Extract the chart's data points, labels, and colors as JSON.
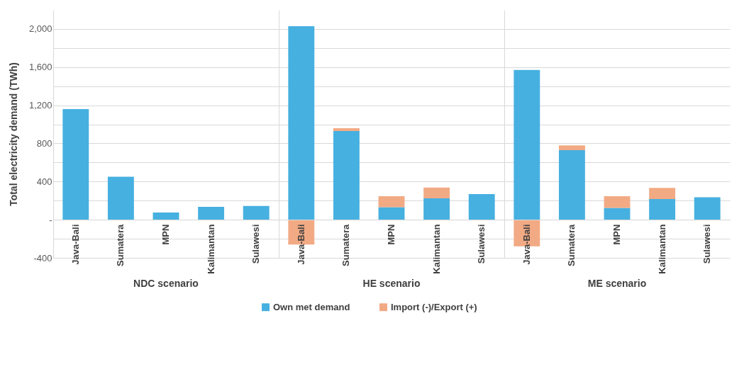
{
  "chart_data": [
    {
      "type": "bar",
      "stacked": true,
      "xlabel": "NDC scenario",
      "ylabel": "Total electricity demand (TWh)",
      "categories": [
        "Java-Bali",
        "Sumatera",
        "MPN",
        "Kalimantan",
        "Sulawesi"
      ],
      "series": [
        {
          "name": "Own met demand",
          "color": "#46b0e0",
          "values": [
            1160,
            450,
            75,
            135,
            145
          ]
        }
      ],
      "ylim": [
        -400,
        2200
      ],
      "yticks": [
        -400,
        {
          "value": -200,
          "label": null
        },
        {
          "value": 0,
          "label": "-"
        },
        {
          "value": 200,
          "label": null
        },
        400,
        {
          "value": 600,
          "label": null
        },
        800,
        {
          "value": 1000,
          "label": null
        },
        {
          "value": 1200,
          "label": "1,200"
        },
        {
          "value": 1400,
          "label": null
        },
        {
          "value": 1600,
          "label": "1,600"
        },
        {
          "value": 1800,
          "label": null
        },
        {
          "value": 2000,
          "label": "2,000"
        }
      ],
      "grid": "y",
      "legend": "bottom"
    },
    {
      "type": "bar",
      "stacked": true,
      "xlabel": "HE scenario",
      "categories": [
        "Java-Bali",
        "Sumatera",
        "MPN",
        "Kalimantan",
        "Sulawesi"
      ],
      "series": [
        {
          "name": "Own met demand",
          "color": "#46b0e0",
          "values": [
            2030,
            930,
            132,
            224,
            269
          ]
        },
        {
          "name": "Import (-)/Export (+)",
          "color": "#f2aa84",
          "values": [
            -260,
            30,
            115,
            113,
            0
          ]
        }
      ],
      "legend": "bottom",
      "ylim": [
        -400,
        2200
      ],
      "yticks": [
        {
          "value": -400,
          "label": null
        },
        {
          "value": -200,
          "label": null
        },
        {
          "value": 0,
          "label": null
        },
        {
          "value": 200,
          "label": null
        },
        {
          "value": 400,
          "label": null
        },
        {
          "value": 600,
          "label": null
        },
        {
          "value": 800,
          "label": null
        },
        {
          "value": 1000,
          "label": null
        },
        {
          "value": 1200,
          "label": null
        },
        {
          "value": 1400,
          "label": null
        },
        {
          "value": 1600,
          "label": null
        },
        {
          "value": 1800,
          "label": null
        },
        {
          "value": 2000,
          "label": null
        }
      ],
      "grid": "y",
      "tick_labels": "x"
    },
    {
      "type": "bar",
      "stacked": true,
      "xlabel": "ME scenario",
      "categories": [
        "Java-Bali",
        "Sumatera",
        "MPN",
        "Kalimantan",
        "Sulawesi"
      ],
      "series": [
        {
          "name": "Own met demand",
          "color": "#46b0e0",
          "values": [
            1570,
            730,
            124,
            216,
            235
          ]
        },
        {
          "name": "Import (-)/Export (+)",
          "color": "#f2aa84",
          "values": [
            -280,
            50,
            123,
            117,
            0
          ]
        }
      ],
      "legend": "bottom",
      "ylim": [
        -400,
        2200
      ],
      "yticks": [
        {
          "value": -400,
          "label": null
        },
        {
          "value": -200,
          "label": null
        },
        {
          "value": 0,
          "label": null
        },
        {
          "value": 200,
          "label": null
        },
        {
          "value": 400,
          "label": null
        },
        {
          "value": 600,
          "label": null
        },
        {
          "value": 800,
          "label": null
        },
        {
          "value": 1000,
          "label": null
        },
        {
          "value": 1200,
          "label": null
        },
        {
          "value": 1400,
          "label": null
        },
        {
          "value": 1600,
          "label": null
        },
        {
          "value": 1800,
          "label": null
        },
        {
          "value": 2000,
          "label": null
        }
      ],
      "grid": "y",
      "tick_labels": "x"
    }
  ]
}
